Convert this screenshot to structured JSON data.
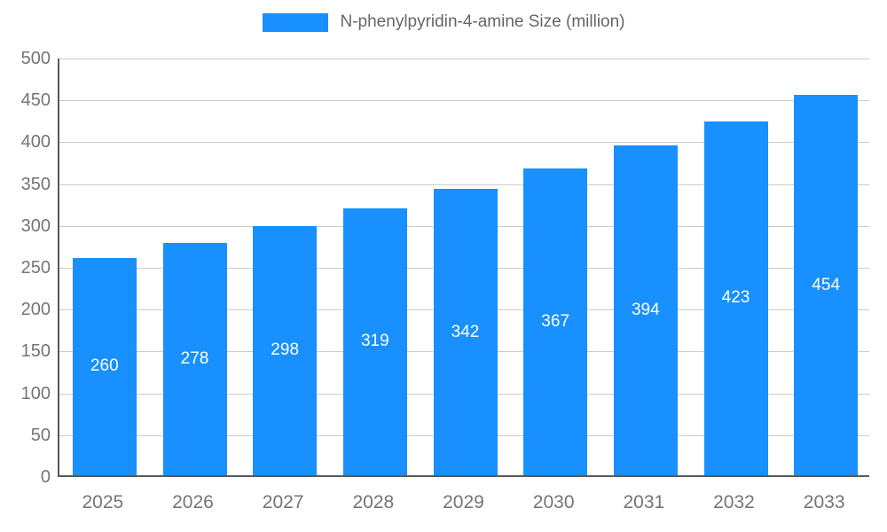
{
  "chart_data": {
    "type": "bar",
    "title": "N-phenylpyridin-4-amine Size (million)",
    "categories": [
      "2025",
      "2026",
      "2027",
      "2028",
      "2029",
      "2030",
      "2031",
      "2032",
      "2033"
    ],
    "values": [
      260,
      278,
      298,
      319,
      342,
      367,
      394,
      423,
      454
    ],
    "xlabel": "",
    "ylabel": "",
    "ylim": [
      0,
      500
    ],
    "ytick_step": 50,
    "yticks": [
      0,
      50,
      100,
      150,
      200,
      250,
      300,
      350,
      400,
      450,
      500
    ],
    "grid": true,
    "legend_position": "top",
    "colors": {
      "bar": "#1890ff",
      "bar_value_label": "#ffffff",
      "axis_text": "#757575",
      "gridline": "#cccccc",
      "axis_line": "#595959",
      "legend_text": "#666666"
    }
  }
}
